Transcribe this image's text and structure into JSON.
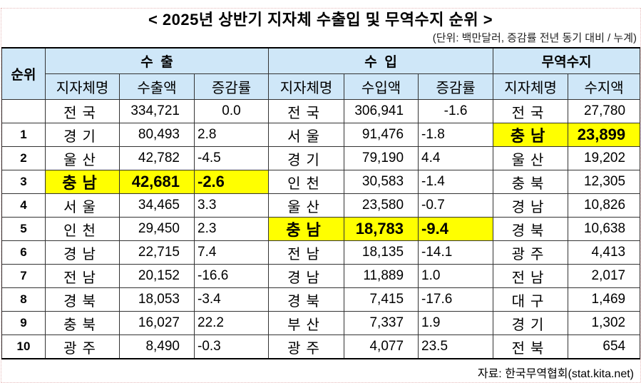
{
  "title": "< 2025년 상반기 지자체 수출입 및 무역수지 순위 >",
  "unit_note": "(단위: 백만달러, 증감률 전년 동기 대비 / 누계)",
  "header": {
    "rank": "순위",
    "export_group": "수  출",
    "import_group": "수  입",
    "balance_group": "무역수지",
    "export_cols": [
      "지자체명",
      "수출액",
      "증감률"
    ],
    "import_cols": [
      "지자체명",
      "수입액",
      "증감률"
    ],
    "balance_cols": [
      "지자체명",
      "수지액"
    ]
  },
  "highlight_color": "#ffff00",
  "rows": [
    {
      "rank": "",
      "exp_name": "전국",
      "exp_value": "334,721",
      "exp_rate": "0.0",
      "imp_name": "전국",
      "imp_value": "306,941",
      "imp_rate": "-1.6",
      "bal_name": "전국",
      "bal_value": "27,780"
    },
    {
      "rank": "1",
      "exp_name": "경기",
      "exp_value": "80,493",
      "exp_rate": "2.8",
      "imp_name": "서울",
      "imp_value": "91,476",
      "imp_rate": "-1.8",
      "bal_name": "충남",
      "bal_value": "23,899",
      "hl_bal": true
    },
    {
      "rank": "2",
      "exp_name": "울산",
      "exp_value": "42,782",
      "exp_rate": "-4.5",
      "imp_name": "경기",
      "imp_value": "79,190",
      "imp_rate": "4.4",
      "bal_name": "울산",
      "bal_value": "19,202"
    },
    {
      "rank": "3",
      "exp_name": "충남",
      "exp_value": "42,681",
      "exp_rate": "-2.6",
      "imp_name": "인천",
      "imp_value": "30,583",
      "imp_rate": "-1.4",
      "bal_name": "충북",
      "bal_value": "12,305",
      "hl_exp": true
    },
    {
      "rank": "4",
      "exp_name": "서울",
      "exp_value": "34,465",
      "exp_rate": "3.3",
      "imp_name": "울산",
      "imp_value": "23,580",
      "imp_rate": "-0.7",
      "bal_name": "경남",
      "bal_value": "10,826"
    },
    {
      "rank": "5",
      "exp_name": "인천",
      "exp_value": "29,450",
      "exp_rate": "2.3",
      "imp_name": "충남",
      "imp_value": "18,783",
      "imp_rate": "-9.4",
      "bal_name": "경북",
      "bal_value": "10,638",
      "hl_imp": true
    },
    {
      "rank": "6",
      "exp_name": "경남",
      "exp_value": "22,715",
      "exp_rate": "7.4",
      "imp_name": "전남",
      "imp_value": "18,135",
      "imp_rate": "-14.1",
      "bal_name": "광주",
      "bal_value": "4,413"
    },
    {
      "rank": "7",
      "exp_name": "전남",
      "exp_value": "20,152",
      "exp_rate": "-16.6",
      "imp_name": "경남",
      "imp_value": "11,889",
      "imp_rate": "1.0",
      "bal_name": "전남",
      "bal_value": "2,017"
    },
    {
      "rank": "8",
      "exp_name": "경북",
      "exp_value": "18,053",
      "exp_rate": "-3.4",
      "imp_name": "경북",
      "imp_value": "7,415",
      "imp_rate": "-17.6",
      "bal_name": "대구",
      "bal_value": "1,469"
    },
    {
      "rank": "9",
      "exp_name": "충북",
      "exp_value": "16,027",
      "exp_rate": "22.2",
      "imp_name": "부산",
      "imp_value": "7,337",
      "imp_rate": "1.9",
      "bal_name": "경기",
      "bal_value": "1,302"
    },
    {
      "rank": "10",
      "exp_name": "광주",
      "exp_value": "8,490",
      "exp_rate": "-0.3",
      "imp_name": "광주",
      "imp_value": "4,077",
      "imp_rate": "23.5",
      "bal_name": "전북",
      "bal_value": "654"
    }
  ],
  "source": "자료: 한국무역협회(stat.kita.net)"
}
